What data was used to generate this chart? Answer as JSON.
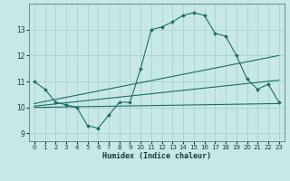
{
  "title": "",
  "xlabel": "Humidex (Indice chaleur)",
  "bg_color": "#c8e8e5",
  "grid_color": "#a8ccc8",
  "line_color": "#1a6e64",
  "xlim": [
    -0.5,
    23.5
  ],
  "ylim": [
    8.7,
    14.0
  ],
  "yticks": [
    9,
    10,
    11,
    12,
    13
  ],
  "xticks": [
    0,
    1,
    2,
    3,
    4,
    5,
    6,
    7,
    8,
    9,
    10,
    11,
    12,
    13,
    14,
    15,
    16,
    17,
    18,
    19,
    20,
    21,
    22,
    23
  ],
  "series": [
    {
      "x": [
        0,
        1,
        2,
        3,
        4,
        5,
        6,
        7,
        8,
        9,
        10,
        11,
        12,
        13,
        14,
        15,
        16,
        17,
        18,
        19,
        20,
        21,
        22,
        23
      ],
      "y": [
        11.0,
        10.7,
        10.2,
        10.1,
        10.0,
        9.3,
        9.2,
        9.7,
        10.2,
        10.2,
        11.5,
        13.0,
        13.1,
        13.3,
        13.55,
        13.65,
        13.55,
        12.85,
        12.75,
        12.0,
        11.1,
        10.7,
        10.9,
        10.2
      ],
      "marker": "D",
      "markersize": 2.0,
      "linewidth": 0.8,
      "has_marker": true
    },
    {
      "x": [
        0,
        23
      ],
      "y": [
        10.15,
        12.0
      ],
      "marker": null,
      "linewidth": 0.8,
      "has_marker": false
    },
    {
      "x": [
        0,
        23
      ],
      "y": [
        10.05,
        11.05
      ],
      "marker": null,
      "linewidth": 0.8,
      "has_marker": false
    },
    {
      "x": [
        0,
        23
      ],
      "y": [
        10.0,
        10.15
      ],
      "marker": null,
      "linewidth": 0.8,
      "has_marker": false
    }
  ]
}
